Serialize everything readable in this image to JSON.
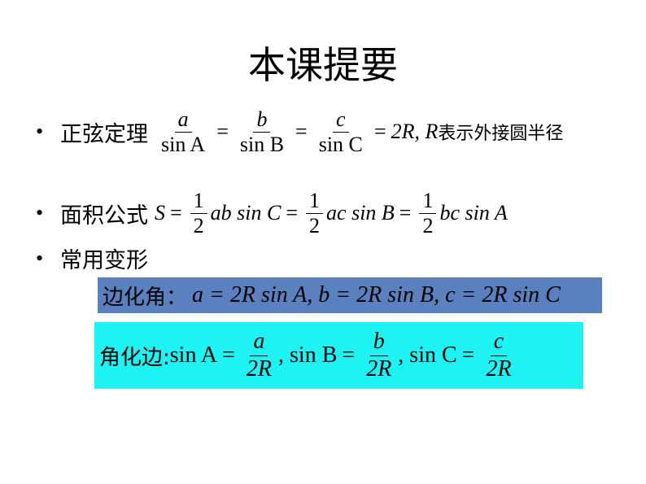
{
  "title": "本课提要",
  "bullets": [
    {
      "label": "正弦定理",
      "formula": {
        "a": "a",
        "sinA": "sin A",
        "b": "b",
        "sinB": "sin B",
        "c": "c",
        "sinC": "sin C",
        "rhs": "2R, R",
        "note": "表示外接圆半径"
      }
    },
    {
      "label": "面积公式",
      "formula": {
        "S": "S",
        "one": "1",
        "two": "2",
        "t1": "ab sin C",
        "t2": "ac sin B",
        "t3": "bc sin A"
      }
    },
    {
      "label": "常用变形"
    }
  ],
  "box_side_to_angle": {
    "label": "边化角：",
    "formula": "a = 2R sin A, b = 2R sin B, c = 2R sin C",
    "color": "#5a80c0"
  },
  "box_angle_to_side": {
    "label": "角化边:",
    "sinA": "sin A",
    "sinB": ", sin B",
    "sinC": ", sin C",
    "a": "a",
    "b": "b",
    "c": "c",
    "den": "2R",
    "color": "#1ff2f2"
  },
  "symbols": {
    "eq": "=",
    "bullet": "•",
    "comma": ","
  }
}
